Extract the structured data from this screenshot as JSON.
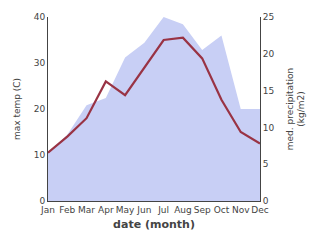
{
  "chart_data": {
    "type": "line",
    "categories": [
      "Jan",
      "Feb",
      "Mar",
      "Apr",
      "May",
      "Jun",
      "Jul",
      "Aug",
      "Sep",
      "Oct",
      "Nov",
      "Dec"
    ],
    "series": [
      {
        "name": "precipitation",
        "type": "area",
        "axis": "y2",
        "color": "#c8cff5",
        "values": [
          6.5,
          9.0,
          13.0,
          14.0,
          19.5,
          21.5,
          25.0,
          24.0,
          20.5,
          22.5,
          12.5,
          12.5
        ]
      },
      {
        "name": "max temp",
        "type": "line",
        "color": "#993344",
        "values": [
          10.5,
          14.0,
          18.0,
          26.0,
          23.0,
          29.0,
          35.0,
          35.5,
          31.0,
          22.0,
          15.0,
          12.5
        ]
      }
    ],
    "xlabel": "date (month)",
    "ylabel": "max temp (C)",
    "y2label": "med. precipitation\n(kg/m2)",
    "ylim": [
      0,
      40
    ],
    "yticks": [
      0,
      10,
      20,
      30,
      40
    ],
    "y2lim": [
      0,
      25
    ],
    "y2ticks": [
      0,
      5,
      10,
      15,
      20,
      25
    ],
    "grid": false
  }
}
